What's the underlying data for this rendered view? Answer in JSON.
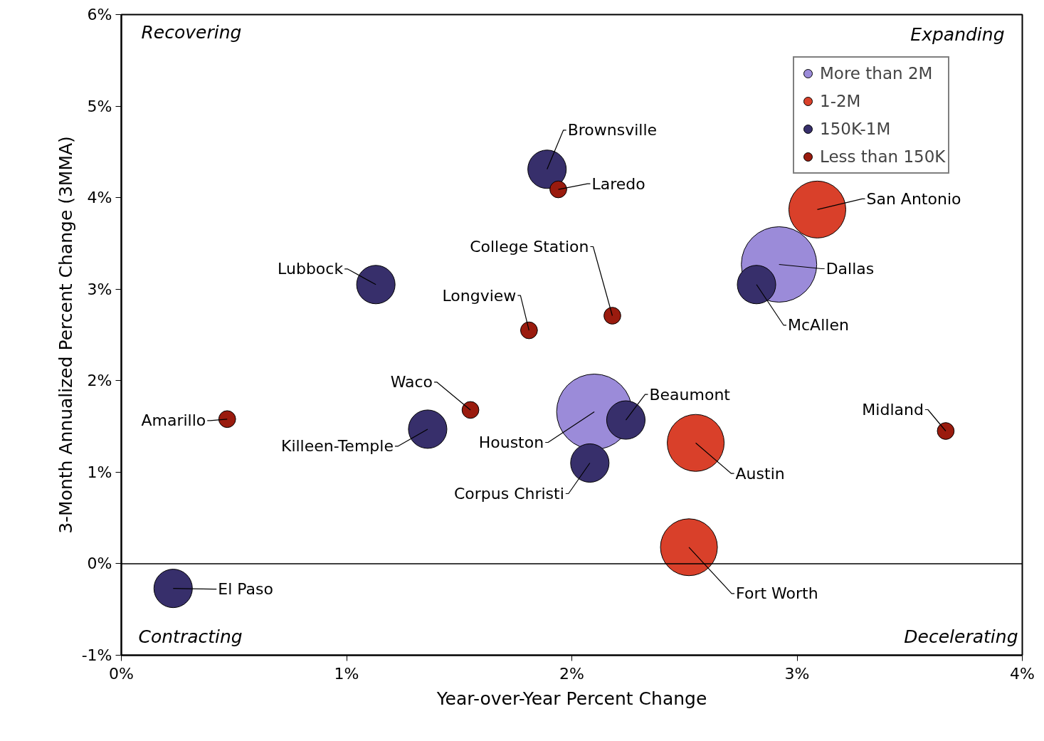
{
  "chart_data": {
    "type": "bubble",
    "xlabel": "Year-over-Year Percent Change",
    "ylabel": "3-Month Annualized Percent Change (3MMA)",
    "xlim": [
      0,
      4
    ],
    "ylim": [
      -1,
      6
    ],
    "xticks": [
      {
        "value": 0,
        "label": "0%"
      },
      {
        "value": 1,
        "label": "1%"
      },
      {
        "value": 2,
        "label": "2%"
      },
      {
        "value": 3,
        "label": "3%"
      },
      {
        "value": 4,
        "label": "4%"
      }
    ],
    "yticks": [
      {
        "value": -1,
        "label": "-1%"
      },
      {
        "value": 0,
        "label": "0%"
      },
      {
        "value": 1,
        "label": "1%"
      },
      {
        "value": 2,
        "label": "2%"
      },
      {
        "value": 3,
        "label": "3%"
      },
      {
        "value": 4,
        "label": "4%"
      },
      {
        "value": 5,
        "label": "5%"
      },
      {
        "value": 6,
        "label": "6%"
      }
    ],
    "grid": false,
    "legend": "top right",
    "ref_lines": [
      {
        "axis": "y",
        "value": 0,
        "color": "#000000"
      }
    ],
    "series": [
      {
        "name": "More than 2M",
        "color": "#9b8bd9",
        "x": [
          2.92,
          2.1
        ],
        "values": [
          3.27,
          1.66
        ],
        "sizes": [
          1,
          1
        ]
      },
      {
        "name": "1-2M",
        "color": "#d9402a",
        "x": [
          3.09,
          2.55,
          2.52
        ],
        "values": [
          3.87,
          1.32,
          0.18
        ],
        "sizes": [
          0.57,
          0.57,
          0.57
        ]
      },
      {
        "name": "150K-1M",
        "color": "#372f6b",
        "x": [
          1.89,
          2.82,
          1.13,
          1.36,
          2.24,
          2.08,
          0.23
        ],
        "values": [
          4.31,
          3.05,
          3.05,
          1.47,
          1.57,
          1.1,
          -0.27
        ],
        "sizes": [
          0.26,
          0.26,
          0.26,
          0.26,
          0.26,
          0.26,
          0.26
        ]
      },
      {
        "name": "Less than 150K",
        "color": "#9a1b0e",
        "x": [
          1.94,
          2.18,
          1.81,
          1.55,
          0.47,
          3.66
        ],
        "values": [
          4.09,
          2.71,
          2.55,
          1.68,
          1.58,
          1.45
        ],
        "sizes": [
          0.05,
          0.05,
          0.05,
          0.05,
          0.05,
          0.05
        ]
      }
    ],
    "annotations": [
      "Recovering",
      "Expanding",
      "Contracting",
      "Decelerating",
      {
        "text": "Brownsville",
        "x": 1.89,
        "y": 4.31
      },
      {
        "text": "Laredo",
        "x": 1.94,
        "y": 4.09
      },
      {
        "text": "San Antonio",
        "x": 3.09,
        "y": 3.87
      },
      {
        "text": "Dallas",
        "x": 2.92,
        "y": 3.27
      },
      {
        "text": "McAllen",
        "x": 2.82,
        "y": 3.05
      },
      {
        "text": "Lubbock",
        "x": 1.13,
        "y": 3.05
      },
      {
        "text": "College Station",
        "x": 2.18,
        "y": 2.71
      },
      {
        "text": "Longview",
        "x": 1.81,
        "y": 2.55
      },
      {
        "text": "Waco",
        "x": 1.55,
        "y": 1.68
      },
      {
        "text": "Amarillo",
        "x": 0.47,
        "y": 1.58
      },
      {
        "text": "Killeen-Temple",
        "x": 1.36,
        "y": 1.47
      },
      {
        "text": "Houston",
        "x": 2.1,
        "y": 1.66
      },
      {
        "text": "Beaumont",
        "x": 2.24,
        "y": 1.57
      },
      {
        "text": "Corpus Christi",
        "x": 2.08,
        "y": 1.1
      },
      {
        "text": "Austin",
        "x": 2.55,
        "y": 1.32
      },
      {
        "text": "Midland",
        "x": 3.66,
        "y": 1.45
      },
      {
        "text": "Fort Worth",
        "x": 2.52,
        "y": 0.18
      },
      {
        "text": "El Paso",
        "x": 0.23,
        "y": -0.27
      }
    ]
  }
}
